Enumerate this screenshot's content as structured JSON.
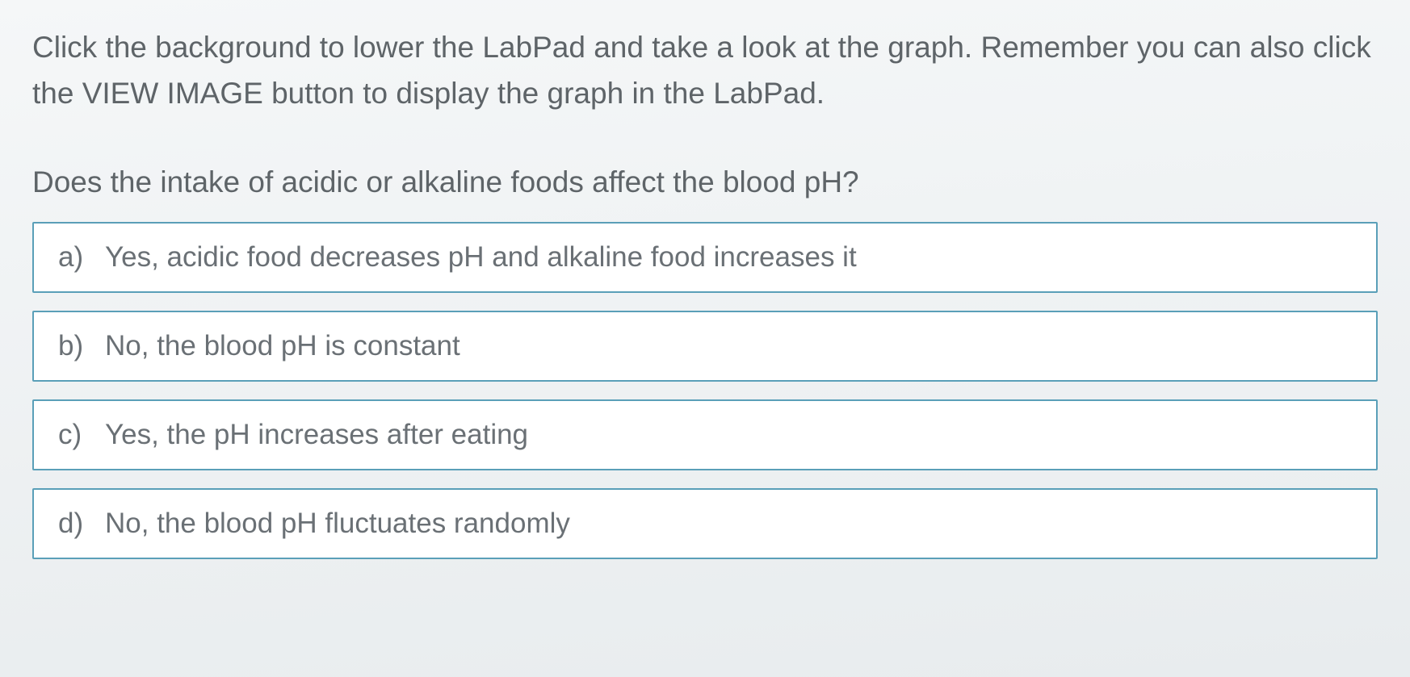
{
  "instruction": "Click the background to lower the LabPad and take a look at the graph. Remember you can also click the VIEW IMAGE button to display the graph in the LabPad.",
  "question": "Does the intake of acidic or alkaline foods affect the blood pH?",
  "options": [
    {
      "letter": "a)",
      "text": "Yes, acidic food decreases pH and alkaline food increases it"
    },
    {
      "letter": "b)",
      "text": "No, the blood pH is constant"
    },
    {
      "letter": "c)",
      "text": "Yes, the pH increases after eating"
    },
    {
      "letter": "d)",
      "text": "No, the blood pH fluctuates randomly"
    }
  ],
  "styling": {
    "background_gradient_start": "#f5f7f8",
    "background_gradient_end": "#e8ecee",
    "text_color": "#5e6468",
    "option_border_color": "#5a9fb8",
    "option_background": "#ffffff",
    "option_text_color": "#6a7075",
    "instruction_fontsize": 37,
    "question_fontsize": 37,
    "option_fontsize": 35,
    "option_border_width": 2,
    "option_gap": 22
  }
}
